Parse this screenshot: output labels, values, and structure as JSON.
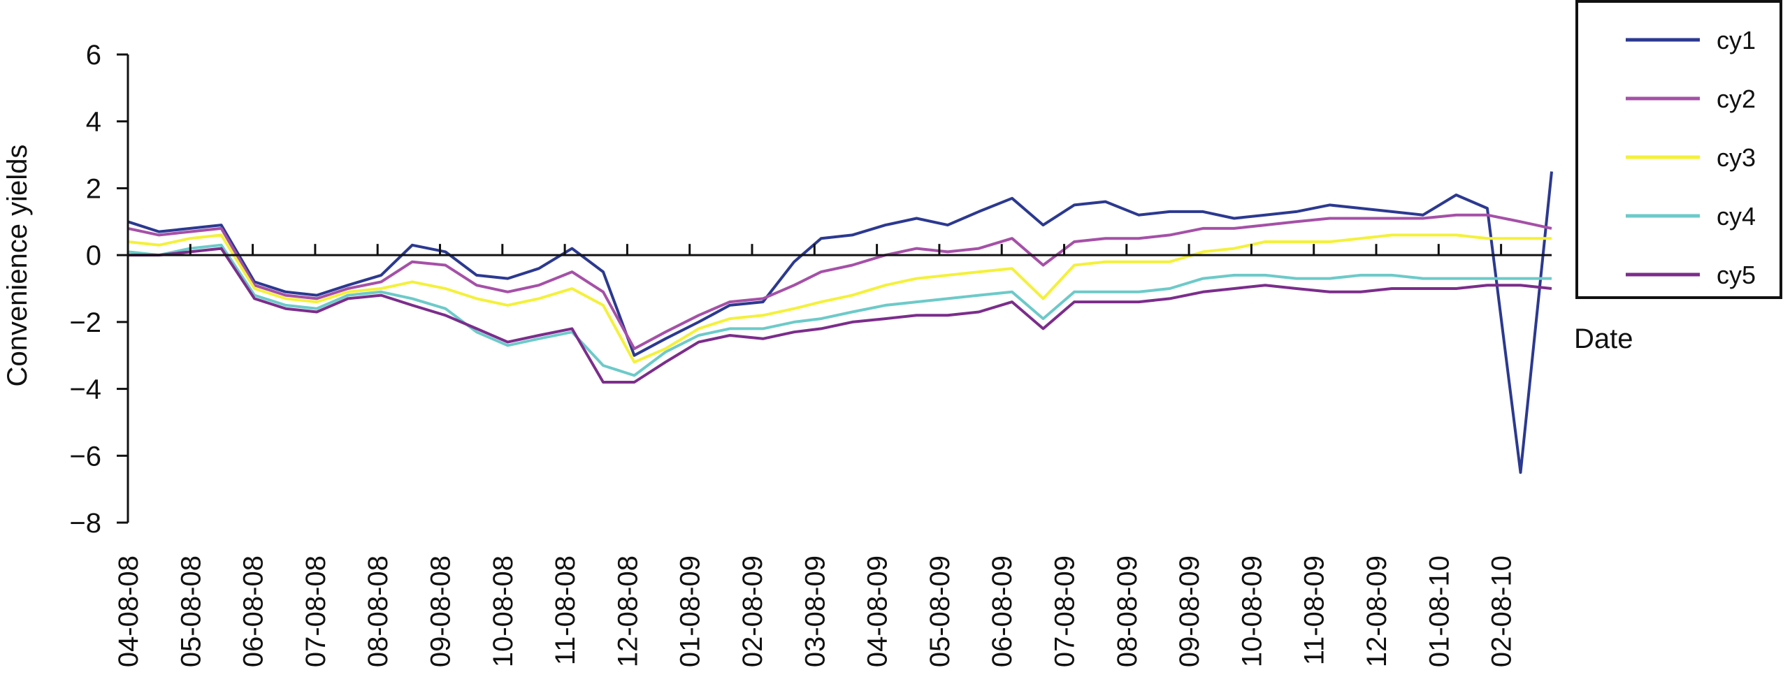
{
  "chart_data": {
    "type": "line",
    "title": "",
    "xlabel": "Date",
    "ylabel": "Convenience yields",
    "ylim": [
      -8,
      6
    ],
    "y_ticks": [
      6,
      4,
      2,
      0,
      -2,
      -4,
      -6,
      -8
    ],
    "y_tick_labels": [
      "6",
      "4",
      "2",
      "0",
      "−2",
      "−4",
      "−6",
      "−8"
    ],
    "x_tick_labels": [
      "04-08-08",
      "05-08-08",
      "06-08-08",
      "07-08-08",
      "08-08-08",
      "09-08-08",
      "10-08-08",
      "11-08-08",
      "12-08-08",
      "01-08-09",
      "02-08-09",
      "03-08-09",
      "04-08-09",
      "05-08-09",
      "06-08-09",
      "07-08-09",
      "08-08-09",
      "09-08-09",
      "10-08-09",
      "11-08-09",
      "12-08-09",
      "01-08-10",
      "02-08-10"
    ],
    "x": [
      "2008-04-08",
      "2008-04-23",
      "2008-05-08",
      "2008-05-23",
      "2008-06-08",
      "2008-06-23",
      "2008-07-08",
      "2008-07-23",
      "2008-08-08",
      "2008-08-23",
      "2008-09-08",
      "2008-09-23",
      "2008-10-08",
      "2008-10-23",
      "2008-11-08",
      "2008-11-23",
      "2008-12-08",
      "2008-12-23",
      "2009-01-08",
      "2009-01-23",
      "2009-02-08",
      "2009-02-23",
      "2009-03-08",
      "2009-03-23",
      "2009-04-08",
      "2009-04-23",
      "2009-05-08",
      "2009-05-23",
      "2009-06-08",
      "2009-06-23",
      "2009-07-08",
      "2009-07-23",
      "2009-08-08",
      "2009-08-23",
      "2009-09-08",
      "2009-09-23",
      "2009-10-08",
      "2009-10-23",
      "2009-11-08",
      "2009-11-23",
      "2009-12-08",
      "2009-12-23",
      "2010-01-08",
      "2010-01-23",
      "2010-02-08",
      "2010-02-23"
    ],
    "zero_line": true,
    "grid": false,
    "legend_position": "top-right",
    "series": [
      {
        "name": "cy1",
        "color": "#2b3990",
        "values": [
          1.0,
          0.7,
          0.8,
          0.9,
          -0.8,
          -1.1,
          -1.2,
          -0.9,
          -0.6,
          0.3,
          0.1,
          -0.6,
          -0.7,
          -0.4,
          0.2,
          -0.5,
          -3.0,
          -2.5,
          -2.0,
          -1.5,
          -1.4,
          -0.2,
          0.5,
          0.6,
          0.9,
          1.1,
          0.9,
          1.3,
          1.7,
          0.9,
          1.5,
          1.6,
          1.2,
          1.3,
          1.3,
          1.1,
          1.2,
          1.3,
          1.5,
          1.4,
          1.3,
          1.2,
          1.8,
          1.4,
          -6.5,
          2.5
        ]
      },
      {
        "name": "cy2",
        "color": "#a550a7",
        "values": [
          0.8,
          0.6,
          0.7,
          0.8,
          -0.9,
          -1.2,
          -1.3,
          -1.0,
          -0.8,
          -0.2,
          -0.3,
          -0.9,
          -1.1,
          -0.9,
          -0.5,
          -1.1,
          -2.8,
          -2.3,
          -1.8,
          -1.4,
          -1.3,
          -0.9,
          -0.5,
          -0.3,
          0.0,
          0.2,
          0.1,
          0.2,
          0.5,
          -0.3,
          0.4,
          0.5,
          0.5,
          0.6,
          0.8,
          0.8,
          0.9,
          1.0,
          1.1,
          1.1,
          1.1,
          1.1,
          1.2,
          1.2,
          1.0,
          0.8
        ]
      },
      {
        "name": "cy3",
        "color": "#f4f13a",
        "values": [
          0.4,
          0.3,
          0.5,
          0.6,
          -1.0,
          -1.3,
          -1.4,
          -1.1,
          -1.0,
          -0.8,
          -1.0,
          -1.3,
          -1.5,
          -1.3,
          -1.0,
          -1.5,
          -3.2,
          -2.8,
          -2.2,
          -1.9,
          -1.8,
          -1.6,
          -1.4,
          -1.2,
          -0.9,
          -0.7,
          -0.6,
          -0.5,
          -0.4,
          -1.3,
          -0.3,
          -0.2,
          -0.2,
          -0.2,
          0.1,
          0.2,
          0.4,
          0.4,
          0.4,
          0.5,
          0.6,
          0.6,
          0.6,
          0.5,
          0.5,
          0.5
        ]
      },
      {
        "name": "cy4",
        "color": "#6ccac9",
        "values": [
          0.1,
          0.0,
          0.2,
          0.3,
          -1.2,
          -1.5,
          -1.6,
          -1.2,
          -1.1,
          -1.3,
          -1.6,
          -2.3,
          -2.7,
          -2.5,
          -2.3,
          -3.3,
          -3.6,
          -2.9,
          -2.4,
          -2.2,
          -2.2,
          -2.0,
          -1.9,
          -1.7,
          -1.5,
          -1.4,
          -1.3,
          -1.2,
          -1.1,
          -1.9,
          -1.1,
          -1.1,
          -1.1,
          -1.0,
          -0.7,
          -0.6,
          -0.6,
          -0.7,
          -0.7,
          -0.6,
          -0.6,
          -0.7,
          -0.7,
          -0.7,
          -0.7,
          -0.7
        ]
      },
      {
        "name": "cy5",
        "color": "#7b2d8b",
        "values": [
          0.0,
          0.0,
          0.1,
          0.2,
          -1.3,
          -1.6,
          -1.7,
          -1.3,
          -1.2,
          -1.5,
          -1.8,
          -2.2,
          -2.6,
          -2.4,
          -2.2,
          -3.8,
          -3.8,
          -3.2,
          -2.6,
          -2.4,
          -2.5,
          -2.3,
          -2.2,
          -2.0,
          -1.9,
          -1.8,
          -1.8,
          -1.7,
          -1.4,
          -2.2,
          -1.4,
          -1.4,
          -1.4,
          -1.3,
          -1.1,
          -1.0,
          -0.9,
          -1.0,
          -1.1,
          -1.1,
          -1.0,
          -1.0,
          -1.0,
          -0.9,
          -0.9,
          -1.0
        ]
      }
    ]
  }
}
